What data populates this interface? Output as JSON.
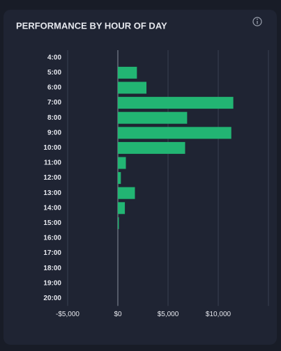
{
  "chart_data": {
    "type": "bar",
    "orientation": "horizontal",
    "title": "PERFORMANCE BY HOUR OF DAY",
    "categories": [
      "4:00",
      "5:00",
      "6:00",
      "7:00",
      "8:00",
      "9:00",
      "10:00",
      "11:00",
      "12:00",
      "13:00",
      "14:00",
      "15:00",
      "16:00",
      "17:00",
      "18:00",
      "19:00",
      "20:00"
    ],
    "values": [
      0,
      1900,
      2850,
      11500,
      6900,
      11300,
      6700,
      800,
      300,
      1700,
      700,
      100,
      0,
      0,
      0,
      0,
      0
    ],
    "color": "#22b573",
    "xlim": [
      -5000,
      15000
    ],
    "xticks": [
      {
        "value": -5000,
        "label": "-$5,000"
      },
      {
        "value": 0,
        "label": "$0"
      },
      {
        "value": 5000,
        "label": "$5,000"
      },
      {
        "value": 10000,
        "label": "$10,000"
      }
    ],
    "grid": true
  }
}
